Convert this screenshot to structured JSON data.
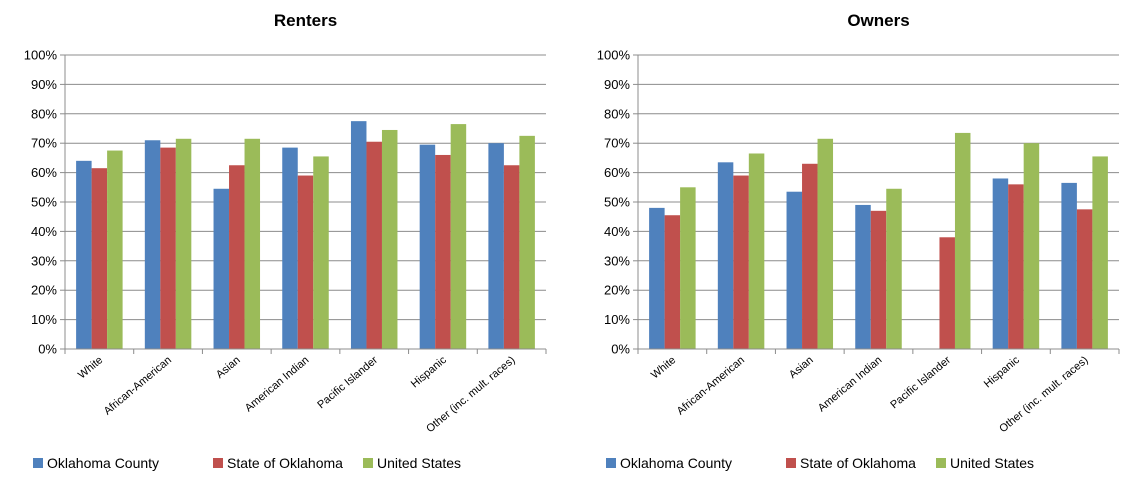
{
  "chart_data": [
    {
      "type": "bar",
      "title": "Renters",
      "categories": [
        "White",
        "African-American",
        "Asian",
        "American Indian",
        "Pacific Islander",
        "Hispanic",
        "Other (inc. mult. races)"
      ],
      "series": [
        {
          "name": "Oklahoma County",
          "color": "#4f81bd",
          "values": [
            64,
            71,
            54.5,
            68.5,
            77.5,
            69.5,
            70
          ]
        },
        {
          "name": "State of Oklahoma",
          "color": "#c0504d",
          "values": [
            61.5,
            68.5,
            62.5,
            59,
            70.5,
            66,
            62.5
          ]
        },
        {
          "name": "United States",
          "color": "#9bbb59",
          "values": [
            67.5,
            71.5,
            71.5,
            65.5,
            74.5,
            76.5,
            72.5
          ]
        }
      ],
      "ylim": [
        0,
        100
      ],
      "yticks": [
        "0%",
        "10%",
        "20%",
        "30%",
        "40%",
        "50%",
        "60%",
        "70%",
        "80%",
        "90%",
        "100%"
      ],
      "grid": true,
      "legend": "bottom"
    },
    {
      "type": "bar",
      "title": "Owners",
      "categories": [
        "White",
        "African-American",
        "Asian",
        "American Indian",
        "Pacific Islander",
        "Hispanic",
        "Other (inc. mult. races)"
      ],
      "series": [
        {
          "name": "Oklahoma County",
          "color": "#4f81bd",
          "values": [
            48,
            63.5,
            53.5,
            49,
            null,
            58,
            56.5
          ]
        },
        {
          "name": "State of Oklahoma",
          "color": "#c0504d",
          "values": [
            45.5,
            59,
            63,
            47,
            38,
            56,
            47.5
          ]
        },
        {
          "name": "United States",
          "color": "#9bbb59",
          "values": [
            55,
            66.5,
            71.5,
            54.5,
            73.5,
            70,
            65.5
          ]
        }
      ],
      "ylim": [
        0,
        100
      ],
      "yticks": [
        "0%",
        "10%",
        "20%",
        "30%",
        "40%",
        "50%",
        "60%",
        "70%",
        "80%",
        "90%",
        "100%"
      ],
      "grid": true,
      "legend": "bottom"
    }
  ]
}
